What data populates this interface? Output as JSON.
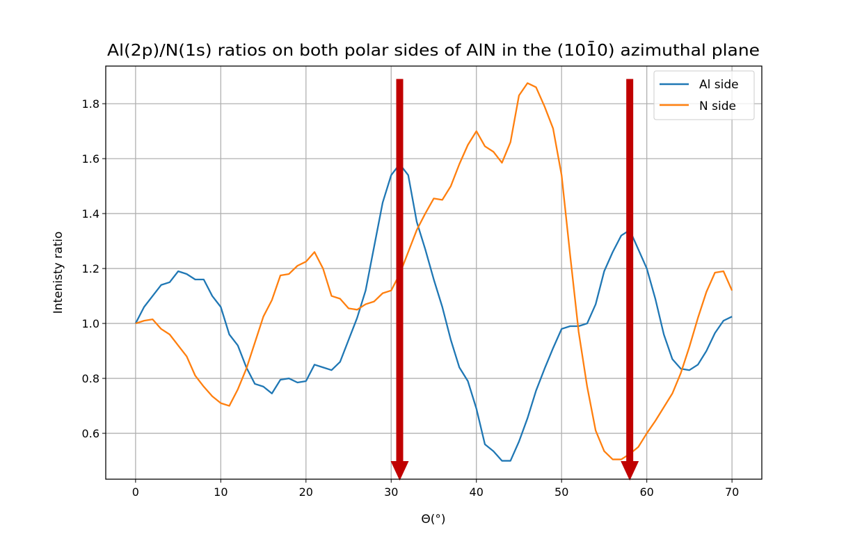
{
  "chart_data": {
    "type": "line",
    "title": "Al(2p)/N(1s) ratios on both polar sides of AlN in the (101̄0) azimuthal plane",
    "xlabel": "Θ(°)",
    "ylabel": "Intenisty ratio",
    "xlim": [
      -3.5,
      73.5
    ],
    "ylim": [
      0.433,
      1.937
    ],
    "xticks": [
      0,
      10,
      20,
      30,
      40,
      50,
      60,
      70
    ],
    "yticks": [
      0.6,
      0.8,
      1.0,
      1.2,
      1.4,
      1.6,
      1.8
    ],
    "ytick_labels": [
      "0.6",
      "0.8",
      "1.0",
      "1.2",
      "1.4",
      "1.6",
      "1.8"
    ],
    "grid": true,
    "legend_position": "top-right",
    "x": [
      0,
      1,
      2,
      3,
      4,
      5,
      6,
      7,
      8,
      9,
      10,
      11,
      12,
      13,
      14,
      15,
      16,
      17,
      18,
      19,
      20,
      21,
      22,
      23,
      24,
      25,
      26,
      27,
      28,
      29,
      30,
      31,
      32,
      33,
      34,
      35,
      36,
      37,
      38,
      39,
      40,
      41,
      42,
      43,
      44,
      45,
      46,
      47,
      48,
      49,
      50,
      51,
      52,
      53,
      54,
      55,
      56,
      57,
      58,
      59,
      60,
      61,
      62,
      63,
      64,
      65,
      66,
      67,
      68,
      69,
      70
    ],
    "series": [
      {
        "name": "Al side",
        "color": "#1f77b4",
        "values": [
          1.0,
          1.06,
          1.1,
          1.14,
          1.15,
          1.19,
          1.18,
          1.16,
          1.16,
          1.1,
          1.06,
          0.96,
          0.92,
          0.84,
          0.78,
          0.77,
          0.745,
          0.795,
          0.8,
          0.785,
          0.79,
          0.85,
          0.84,
          0.83,
          0.86,
          0.94,
          1.02,
          1.12,
          1.28,
          1.44,
          1.54,
          1.58,
          1.54,
          1.37,
          1.27,
          1.16,
          1.06,
          0.94,
          0.84,
          0.79,
          0.69,
          0.56,
          0.535,
          0.5,
          0.5,
          0.57,
          0.655,
          0.755,
          0.835,
          0.91,
          0.98,
          0.99,
          0.99,
          1.0,
          1.07,
          1.19,
          1.26,
          1.32,
          1.34,
          1.27,
          1.2,
          1.09,
          0.96,
          0.87,
          0.835,
          0.83,
          0.85,
          0.9,
          0.965,
          1.01,
          1.025
        ]
      },
      {
        "name": "N side",
        "color": "#ff7f0e",
        "values": [
          1.0,
          1.01,
          1.015,
          0.98,
          0.96,
          0.92,
          0.88,
          0.81,
          0.77,
          0.735,
          0.71,
          0.7,
          0.76,
          0.835,
          0.93,
          1.025,
          1.085,
          1.175,
          1.18,
          1.21,
          1.225,
          1.26,
          1.2,
          1.1,
          1.09,
          1.055,
          1.05,
          1.07,
          1.08,
          1.11,
          1.12,
          1.18,
          1.26,
          1.34,
          1.4,
          1.455,
          1.45,
          1.5,
          1.58,
          1.65,
          1.7,
          1.645,
          1.625,
          1.585,
          1.66,
          1.83,
          1.875,
          1.86,
          1.79,
          1.71,
          1.54,
          1.25,
          0.97,
          0.77,
          0.61,
          0.535,
          0.505,
          0.505,
          0.525,
          0.55,
          0.6,
          0.645,
          0.695,
          0.745,
          0.82,
          0.915,
          1.02,
          1.115,
          1.185,
          1.19,
          1.12
        ]
      }
    ],
    "annotations": [
      {
        "type": "arrow-down",
        "x": 31,
        "y_from": 1.89,
        "color": "#c00000"
      },
      {
        "type": "arrow-down",
        "x": 58,
        "y_from": 1.89,
        "color": "#c00000"
      }
    ]
  }
}
